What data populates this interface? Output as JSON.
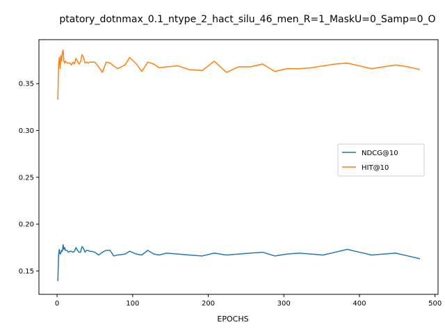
{
  "chart_data": {
    "type": "line",
    "title": "ptatory_dotnmax_0.1_ntype_2_hact_silu_46_men_R=1_MaskU=0_Samp=0_O",
    "xlabel": "EPOCHS",
    "ylabel": "",
    "xlim": [
      -24,
      504
    ],
    "ylim": [
      0.125,
      0.397
    ],
    "xticks": [
      0,
      100,
      200,
      300,
      400,
      500
    ],
    "yticks": [
      0.15,
      0.2,
      0.25,
      0.3,
      0.35
    ],
    "ytick_labels": [
      "0.15",
      "0.20",
      "0.25",
      "0.30",
      "0.35"
    ],
    "grid": false,
    "legend_position": "center-right",
    "series": [
      {
        "name": "NDCG@10",
        "color": "#1f77b4",
        "x": [
          1,
          2,
          3,
          4,
          5,
          6,
          7,
          8,
          9,
          10,
          11,
          12,
          13,
          15,
          17,
          19,
          21,
          23,
          25,
          27,
          29,
          31,
          33,
          35,
          37,
          39,
          41,
          43,
          45,
          50,
          55,
          60,
          65,
          70,
          75,
          80,
          90,
          96,
          105,
          112,
          120,
          128,
          135,
          145,
          160,
          175,
          192,
          208,
          224,
          240,
          256,
          272,
          288,
          304,
          320,
          336,
          352,
          368,
          384,
          400,
          416,
          432,
          448,
          464,
          480
        ],
        "y": [
          0.139,
          0.167,
          0.173,
          0.168,
          0.169,
          0.172,
          0.171,
          0.178,
          0.173,
          0.175,
          0.172,
          0.172,
          0.172,
          0.17,
          0.171,
          0.171,
          0.17,
          0.171,
          0.175,
          0.172,
          0.17,
          0.17,
          0.176,
          0.174,
          0.17,
          0.172,
          0.172,
          0.171,
          0.171,
          0.17,
          0.167,
          0.17,
          0.172,
          0.172,
          0.166,
          0.167,
          0.168,
          0.171,
          0.168,
          0.167,
          0.172,
          0.168,
          0.167,
          0.169,
          0.168,
          0.167,
          0.166,
          0.169,
          0.167,
          0.168,
          0.169,
          0.17,
          0.166,
          0.168,
          0.169,
          0.168,
          0.167,
          0.17,
          0.173,
          0.17,
          0.167,
          0.168,
          0.169,
          0.166,
          0.163
        ]
      },
      {
        "name": "HIT@10",
        "color": "#ff7f0e",
        "x": [
          1,
          2,
          3,
          4,
          5,
          6,
          7,
          8,
          9,
          10,
          11,
          12,
          13,
          15,
          17,
          19,
          21,
          23,
          25,
          27,
          29,
          31,
          33,
          35,
          37,
          39,
          41,
          43,
          45,
          50,
          55,
          60,
          65,
          70,
          75,
          80,
          90,
          96,
          105,
          112,
          120,
          128,
          135,
          145,
          160,
          175,
          192,
          208,
          224,
          240,
          256,
          272,
          288,
          304,
          320,
          336,
          352,
          368,
          384,
          400,
          416,
          432,
          448,
          464,
          480
        ],
        "y": [
          0.333,
          0.37,
          0.378,
          0.366,
          0.38,
          0.374,
          0.383,
          0.386,
          0.374,
          0.372,
          0.374,
          0.373,
          0.372,
          0.372,
          0.372,
          0.37,
          0.373,
          0.371,
          0.377,
          0.374,
          0.371,
          0.373,
          0.381,
          0.378,
          0.372,
          0.373,
          0.372,
          0.373,
          0.373,
          0.373,
          0.368,
          0.362,
          0.373,
          0.372,
          0.369,
          0.366,
          0.37,
          0.378,
          0.371,
          0.363,
          0.373,
          0.371,
          0.367,
          0.368,
          0.369,
          0.365,
          0.364,
          0.374,
          0.362,
          0.368,
          0.368,
          0.371,
          0.363,
          0.366,
          0.366,
          0.367,
          0.369,
          0.371,
          0.372,
          0.369,
          0.366,
          0.368,
          0.37,
          0.368,
          0.365
        ]
      }
    ]
  }
}
